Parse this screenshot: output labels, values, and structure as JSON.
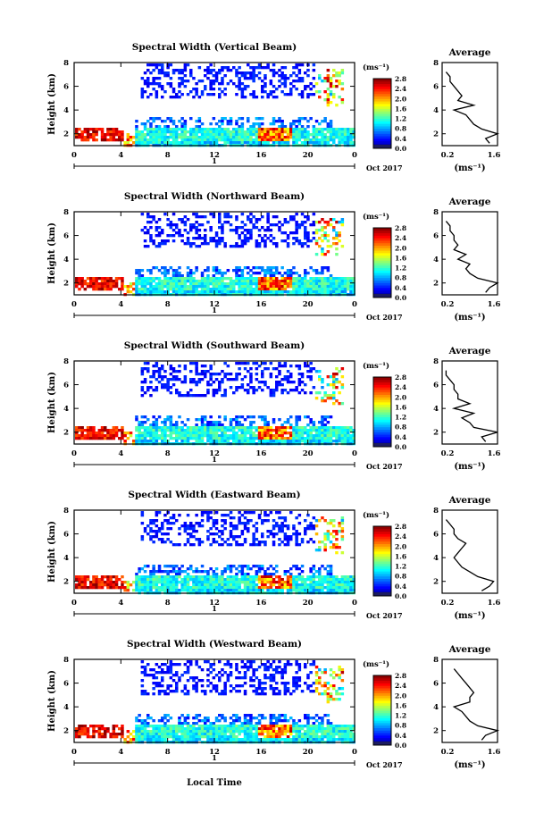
{
  "figure": {
    "xlabel_bottom": "Local Time",
    "date_label": "Oct 2017",
    "day_label": "1",
    "height_label": "Height (km)",
    "unit_label": "(ms⁻¹)",
    "avg_title": "Average",
    "avg_unit": "(ms⁻¹)"
  },
  "chart_data": [
    {
      "type": "heatmap",
      "title": "Spectral Width (Vertical Beam)",
      "ylabel": "Height (km)",
      "xlim": [
        0,
        24
      ],
      "ylim": [
        1,
        8
      ],
      "xticks": [
        "0",
        "4",
        "8",
        "12",
        "16",
        "20",
        "0"
      ],
      "yticks": [
        "2",
        "4",
        "6",
        "8"
      ],
      "colorbar": {
        "unit": "(ms⁻¹)",
        "range": [
          0.0,
          2.8
        ],
        "ticks": [
          "0.0",
          "0.4",
          "0.8",
          "1.2",
          "1.6",
          "2.0",
          "2.4",
          "2.8"
        ]
      },
      "average": {
        "xlim": [
          0.2,
          1.6
        ],
        "xticks": [
          "0.2",
          "1.6"
        ],
        "ylim": [
          1,
          8
        ],
        "yticks": [
          "2",
          "4",
          "6",
          "8"
        ],
        "height_km": [
          1.2,
          1.6,
          2.0,
          2.4,
          2.8,
          3.2,
          3.6,
          4.0,
          4.4,
          4.8,
          5.2,
          5.6,
          6.0,
          6.4,
          6.8,
          7.2
        ],
        "width": [
          1.4,
          1.3,
          1.6,
          1.2,
          1.0,
          0.9,
          0.8,
          0.5,
          1.0,
          0.6,
          0.7,
          0.6,
          0.5,
          0.4,
          0.4,
          0.3
        ]
      }
    },
    {
      "type": "heatmap",
      "title": "Spectral Width (Northward Beam)",
      "ylabel": "Height (km)",
      "xlim": [
        0,
        24
      ],
      "ylim": [
        1,
        8
      ],
      "xticks": [
        "0",
        "4",
        "8",
        "12",
        "16",
        "20",
        "0"
      ],
      "yticks": [
        "2",
        "4",
        "6",
        "8"
      ],
      "colorbar": {
        "unit": "(ms⁻¹)",
        "range": [
          0.0,
          2.8
        ],
        "ticks": [
          "0.0",
          "0.4",
          "0.8",
          "1.2",
          "1.6",
          "2.0",
          "2.4",
          "2.8"
        ]
      },
      "average": {
        "xlim": [
          0.2,
          1.6
        ],
        "xticks": [
          "0.2",
          "1.6"
        ],
        "ylim": [
          1,
          8
        ],
        "yticks": [
          "2",
          "4",
          "6",
          "8"
        ],
        "height_km": [
          1.2,
          1.6,
          2.0,
          2.4,
          2.8,
          3.2,
          3.6,
          4.0,
          4.4,
          4.8,
          5.2,
          5.6,
          6.0,
          6.4,
          6.8,
          7.2
        ],
        "width": [
          1.3,
          1.4,
          1.6,
          1.1,
          0.9,
          0.8,
          0.9,
          0.6,
          0.8,
          0.5,
          0.6,
          0.5,
          0.5,
          0.4,
          0.4,
          0.3
        ]
      }
    },
    {
      "type": "heatmap",
      "title": "Spectral Width (Southward Beam)",
      "ylabel": "Height (km)",
      "xlim": [
        0,
        24
      ],
      "ylim": [
        1,
        8
      ],
      "xticks": [
        "0",
        "4",
        "8",
        "12",
        "16",
        "20",
        "0"
      ],
      "yticks": [
        "2",
        "4",
        "6",
        "8"
      ],
      "colorbar": {
        "unit": "(ms⁻¹)",
        "range": [
          0.0,
          2.8
        ],
        "ticks": [
          "0.0",
          "0.4",
          "0.8",
          "1.2",
          "1.6",
          "2.0",
          "2.4",
          "2.8"
        ]
      },
      "average": {
        "xlim": [
          0.2,
          1.6
        ],
        "xticks": [
          "0.2",
          "1.6"
        ],
        "ylim": [
          1,
          8
        ],
        "yticks": [
          "2",
          "4",
          "6",
          "8"
        ],
        "height_km": [
          1.2,
          1.6,
          2.0,
          2.4,
          2.8,
          3.2,
          3.6,
          4.0,
          4.4,
          4.8,
          5.2,
          5.6,
          6.0,
          6.4,
          6.8,
          7.2
        ],
        "width": [
          1.3,
          1.2,
          1.6,
          1.0,
          0.9,
          0.7,
          1.0,
          0.5,
          0.9,
          0.6,
          0.6,
          0.5,
          0.5,
          0.4,
          0.3,
          0.3
        ]
      }
    },
    {
      "type": "heatmap",
      "title": "Spectral Width (Eastward Beam)",
      "ylabel": "Height (km)",
      "xlim": [
        0,
        24
      ],
      "ylim": [
        1,
        8
      ],
      "xticks": [
        "0",
        "4",
        "8",
        "12",
        "16",
        "20",
        "0"
      ],
      "yticks": [
        "2",
        "4",
        "6",
        "8"
      ],
      "colorbar": {
        "unit": "(ms⁻¹)",
        "range": [
          0.0,
          2.8
        ],
        "ticks": [
          "0.0",
          "0.4",
          "0.8",
          "1.2",
          "1.6",
          "2.0",
          "2.4",
          "2.8"
        ]
      },
      "average": {
        "xlim": [
          0.2,
          1.6
        ],
        "xticks": [
          "0.2",
          "1.6"
        ],
        "ylim": [
          1,
          8
        ],
        "yticks": [
          "2",
          "4",
          "6",
          "8"
        ],
        "height_km": [
          1.2,
          1.6,
          2.0,
          2.4,
          2.8,
          3.2,
          3.6,
          4.0,
          4.4,
          4.8,
          5.2,
          5.6,
          6.0,
          6.4,
          6.8,
          7.2
        ],
        "width": [
          1.2,
          1.4,
          1.5,
          1.1,
          0.9,
          0.7,
          0.6,
          0.5,
          0.6,
          0.7,
          0.8,
          0.6,
          0.5,
          0.5,
          0.4,
          0.3
        ]
      }
    },
    {
      "type": "heatmap",
      "title": "Spectral Width (Westward Beam)",
      "ylabel": "Height (km)",
      "xlim": [
        0,
        24
      ],
      "ylim": [
        1,
        8
      ],
      "xticks": [
        "0",
        "4",
        "8",
        "12",
        "16",
        "20",
        "0"
      ],
      "yticks": [
        "2",
        "4",
        "6",
        "8"
      ],
      "colorbar": {
        "unit": "(ms⁻¹)",
        "range": [
          0.0,
          2.8
        ],
        "ticks": [
          "0.0",
          "0.4",
          "0.8",
          "1.2",
          "1.6",
          "2.0",
          "2.4",
          "2.8"
        ]
      },
      "average": {
        "xlim": [
          0.2,
          1.6
        ],
        "xticks": [
          "0.2",
          "1.6"
        ],
        "ylim": [
          1,
          8
        ],
        "yticks": [
          "2",
          "4",
          "6",
          "8"
        ],
        "height_km": [
          1.2,
          1.6,
          2.0,
          2.4,
          2.8,
          3.2,
          3.6,
          4.0,
          4.4,
          4.8,
          5.2,
          5.6,
          6.0,
          6.4,
          6.8,
          7.2
        ],
        "width": [
          1.2,
          1.3,
          1.6,
          1.1,
          0.9,
          0.8,
          0.7,
          0.5,
          0.9,
          0.9,
          1.0,
          0.9,
          0.8,
          0.7,
          0.6,
          0.5
        ]
      }
    }
  ]
}
